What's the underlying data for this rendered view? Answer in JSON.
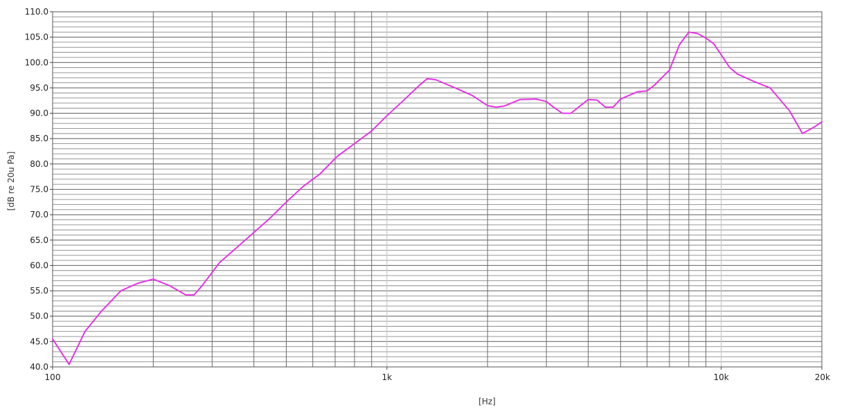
{
  "chart_data": {
    "type": "line",
    "title": "",
    "xlabel": "[Hz]",
    "ylabel": "[dB re 20u Pa]",
    "x_scale": "log",
    "xlim": [
      100,
      20000
    ],
    "ylim": [
      40,
      110
    ],
    "x_ticks": [
      {
        "value": 100,
        "label": "100"
      },
      {
        "value": 1000,
        "label": "1k"
      },
      {
        "value": 10000,
        "label": "10k"
      },
      {
        "value": 20000,
        "label": "20k"
      }
    ],
    "y_ticks": [
      {
        "value": 40,
        "label": "40.0"
      },
      {
        "value": 45,
        "label": "45.0"
      },
      {
        "value": 50,
        "label": "50.0"
      },
      {
        "value": 55,
        "label": "55.0"
      },
      {
        "value": 60,
        "label": "60.0"
      },
      {
        "value": 65,
        "label": "65.0"
      },
      {
        "value": 70,
        "label": "70.0"
      },
      {
        "value": 75,
        "label": "75.0"
      },
      {
        "value": 80,
        "label": "80.0"
      },
      {
        "value": 85,
        "label": "85.0"
      },
      {
        "value": 90,
        "label": "90.0"
      },
      {
        "value": 95,
        "label": "95.0"
      },
      {
        "value": 100,
        "label": "100.0"
      },
      {
        "value": 105,
        "label": "105.0"
      },
      {
        "value": 110,
        "label": "110.0"
      }
    ],
    "grid": true,
    "grid_style": "dense horizontal lines every 1 dB; vertical lines at log decades",
    "series": [
      {
        "color": "#e632e6",
        "x": [
          100,
          112,
          125,
          140,
          160,
          180,
          200,
          224,
          250,
          265,
          280,
          315,
          355,
          400,
          450,
          500,
          560,
          630,
          710,
          800,
          900,
          1000,
          1120,
          1250,
          1320,
          1400,
          1600,
          1800,
          2000,
          2120,
          2240,
          2500,
          2800,
          3000,
          3150,
          3350,
          3550,
          4000,
          4250,
          4500,
          4750,
          5000,
          5600,
          6000,
          6300,
          7000,
          7500,
          8000,
          8500,
          9000,
          9500,
          10000,
          10600,
          11200,
          12500,
          14000,
          16000,
          17500,
          19000,
          20000
        ],
        "y": [
          45.5,
          40.5,
          47.0,
          51.0,
          55.0,
          56.5,
          57.3,
          56.0,
          54.2,
          54.2,
          56.0,
          60.5,
          63.5,
          66.5,
          69.5,
          72.5,
          75.5,
          78.0,
          81.5,
          84.0,
          86.5,
          89.5,
          92.5,
          95.5,
          96.8,
          96.6,
          95.0,
          93.5,
          91.5,
          91.2,
          91.4,
          92.7,
          92.8,
          92.3,
          91.2,
          90.0,
          90.0,
          92.7,
          92.6,
          91.2,
          91.2,
          92.8,
          94.2,
          94.4,
          95.5,
          98.5,
          103.5,
          106.0,
          105.7,
          104.8,
          103.7,
          101.5,
          99.0,
          97.7,
          96.3,
          95.0,
          90.5,
          86.0,
          87.3,
          88.3
        ]
      }
    ]
  }
}
